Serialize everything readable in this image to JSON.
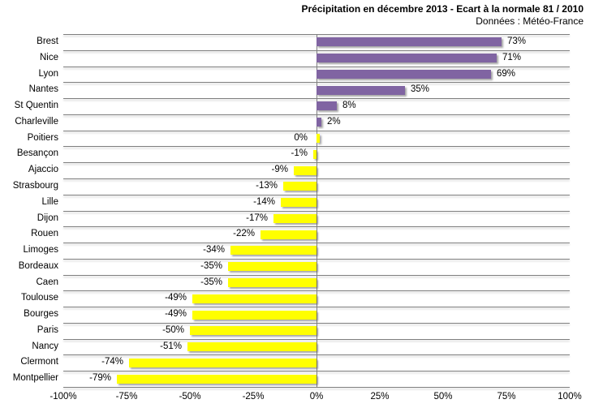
{
  "title": "Précipitation en décembre 2013 - Ecart à la normale 81 / 2010",
  "subtitle": "Données : Météo-France",
  "chart_data": {
    "type": "bar",
    "orientation": "horizontal",
    "title": "Précipitation en décembre 2013 - Ecart à la normale 81 / 2010",
    "subtitle": "Données : Météo-France",
    "categories": [
      "Brest",
      "Nice",
      "Lyon",
      "Nantes",
      "St Quentin",
      "Charleville",
      "Poitiers",
      "Besançon",
      "Ajaccio",
      "Strasbourg",
      "Lille",
      "Dijon",
      "Rouen",
      "Limoges",
      "Bordeaux",
      "Caen",
      "Toulouse",
      "Bourges",
      "Paris",
      "Nancy",
      "Clermont",
      "Montpellier"
    ],
    "values": [
      73,
      71,
      69,
      35,
      8,
      2,
      0,
      -1,
      -9,
      -13,
      -14,
      -17,
      -22,
      -34,
      -35,
      -35,
      -49,
      -49,
      -50,
      -51,
      -74,
      -79
    ],
    "value_labels": [
      "73%",
      "71%",
      "69%",
      "35%",
      "8%",
      "2%",
      "0%",
      "-1%",
      "-9%",
      "-13%",
      "-14%",
      "-17%",
      "-22%",
      "-34%",
      "-35%",
      "-35%",
      "-49%",
      "-49%",
      "-50%",
      "-51%",
      "-74%",
      "-79%"
    ],
    "xlim": [
      -100,
      100
    ],
    "x_ticks": [
      {
        "v": -100,
        "label": "-100%"
      },
      {
        "v": -75,
        "label": "-75%"
      },
      {
        "v": -50,
        "label": "-50%"
      },
      {
        "v": -25,
        "label": "-25%"
      },
      {
        "v": 0,
        "label": "0%"
      },
      {
        "v": 25,
        "label": "25%"
      },
      {
        "v": 50,
        "label": "50%"
      },
      {
        "v": 75,
        "label": "75%"
      },
      {
        "v": 100,
        "label": "100%"
      }
    ],
    "positive_color": "#8064A2",
    "negative_color": "#FFFF00",
    "gridline_color": "#7f7f7f",
    "grid": "horizontal-category-lines",
    "legend_position": "none"
  }
}
